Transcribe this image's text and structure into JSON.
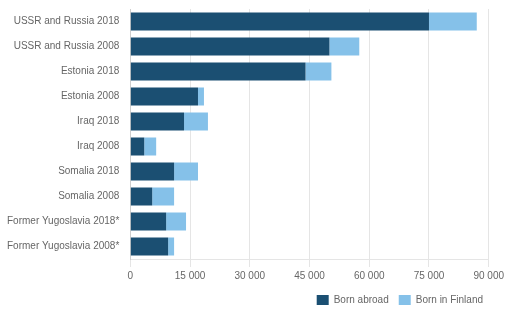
{
  "chart_data": {
    "type": "bar",
    "orientation": "horizontal",
    "stacked": true,
    "categories": [
      "Former Yugoslavia 2008*",
      "Former Yugoslavia 2018*",
      "Somalia 2008",
      "Somalia 2018",
      "Iraq 2008",
      "Iraq 2018",
      "Estonia 2008",
      "Estonia 2018",
      "USSR and Russia 2008",
      "USSR and Russia 2018"
    ],
    "series": [
      {
        "name": "Born abroad",
        "color": "#1b4f72",
        "values": [
          9500,
          9000,
          5500,
          11000,
          3500,
          13500,
          17000,
          44000,
          50000,
          75000
        ]
      },
      {
        "name": "Born in Finland",
        "color": "#85c1e9",
        "values": [
          1500,
          5000,
          5500,
          6000,
          3000,
          6000,
          1500,
          6500,
          7500,
          12000
        ]
      }
    ],
    "xlim": [
      0,
      90000
    ],
    "xticks": [
      0,
      {
        "value": 15000,
        "label": "15 000"
      },
      {
        "value": 30000,
        "label": "30 000"
      },
      {
        "value": 45000,
        "label": "45 000"
      },
      {
        "value": 60000,
        "label": "60 000"
      },
      {
        "value": 75000,
        "label": "75 000"
      },
      {
        "value": 90000,
        "label": "90 000"
      }
    ],
    "grid": true,
    "legend": "lower right"
  }
}
